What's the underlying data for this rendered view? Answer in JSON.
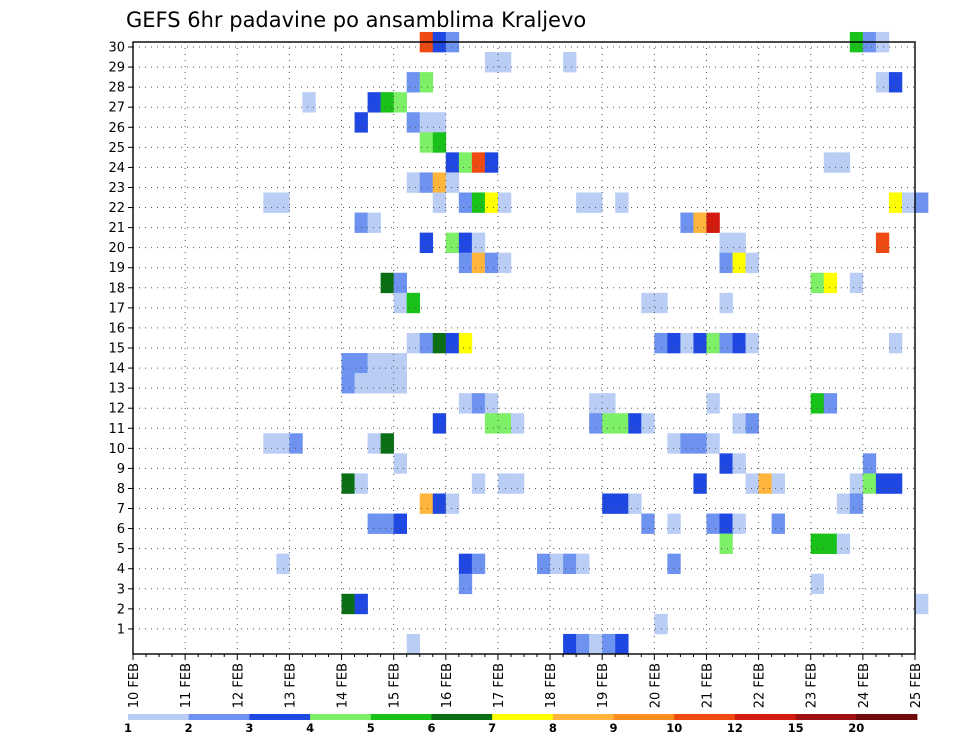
{
  "chart_data": {
    "type": "heatmap",
    "title": "GEFS 6hr padavine po ansamblima Kraljevo",
    "xlabel": "",
    "ylabel": "",
    "x_tick_labels": [
      "10 FEB",
      "11 FEB",
      "12 FEB",
      "13 FEB",
      "14 FEB",
      "15 FEB",
      "16 FEB",
      "17 FEB",
      "18 FEB",
      "19 FEB",
      "20 FEB",
      "21 FEB",
      "22 FEB",
      "23 FEB",
      "24 FEB",
      "25 FEB"
    ],
    "y_tick_labels": [
      "1",
      "2",
      "3",
      "4",
      "5",
      "6",
      "7",
      "8",
      "9",
      "10",
      "11",
      "12",
      "13",
      "14",
      "15",
      "16",
      "17",
      "18",
      "19",
      "20",
      "21",
      "22",
      "23",
      "24",
      "25",
      "26",
      "27",
      "28",
      "29",
      "30"
    ],
    "x_step_hours": 6,
    "y_range": [
      0,
      30
    ],
    "grid": true,
    "colorbar": {
      "labels": [
        "1",
        "2",
        "3",
        "4",
        "5",
        "6",
        "7",
        "8",
        "9",
        "10",
        "12",
        "15",
        "20"
      ],
      "colors": [
        "#b9cdf5",
        "#6e92ef",
        "#1f48e2",
        "#7ef068",
        "#18c218",
        "#0a6e14",
        "#ffff00",
        "#ffb43c",
        "#ff8c1e",
        "#ee4a12",
        "#d21a0f",
        "#a01010",
        "#6e0a0a"
      ]
    },
    "cells": [
      {
        "m": 30,
        "s": [
          [
            22,
            9
          ],
          [
            23,
            2
          ],
          [
            24,
            1
          ],
          [
            55,
            4
          ],
          [
            56,
            1
          ],
          [
            57,
            0
          ]
        ]
      },
      {
        "m": 29,
        "s": [
          [
            27,
            0
          ],
          [
            28,
            0
          ],
          [
            33,
            0
          ]
        ]
      },
      {
        "m": 28,
        "s": [
          [
            21,
            1
          ],
          [
            22,
            3
          ],
          [
            57,
            0
          ],
          [
            58,
            2
          ]
        ]
      },
      {
        "m": 27,
        "s": [
          [
            13,
            0
          ],
          [
            18,
            2
          ],
          [
            19,
            4
          ],
          [
            20,
            3
          ]
        ]
      },
      {
        "m": 26,
        "s": [
          [
            17,
            2
          ],
          [
            21,
            1
          ],
          [
            22,
            0
          ],
          [
            23,
            0
          ]
        ]
      },
      {
        "m": 25,
        "s": [
          [
            22,
            3
          ],
          [
            23,
            4
          ]
        ]
      },
      {
        "m": 24,
        "s": [
          [
            24,
            2
          ],
          [
            25,
            3
          ],
          [
            26,
            9
          ],
          [
            27,
            2
          ],
          [
            53,
            0
          ],
          [
            54,
            0
          ]
        ]
      },
      {
        "m": 23,
        "s": [
          [
            21,
            0
          ],
          [
            22,
            1
          ],
          [
            23,
            7
          ],
          [
            24,
            0
          ]
        ]
      },
      {
        "m": 22,
        "s": [
          [
            10,
            0
          ],
          [
            11,
            0
          ],
          [
            23,
            0
          ],
          [
            25,
            1
          ],
          [
            26,
            4
          ],
          [
            27,
            6
          ],
          [
            28,
            0
          ],
          [
            34,
            0
          ],
          [
            35,
            0
          ],
          [
            37,
            0
          ],
          [
            58,
            6
          ],
          [
            59,
            0
          ],
          [
            60,
            1
          ]
        ]
      },
      {
        "m": 21,
        "s": [
          [
            17,
            1
          ],
          [
            18,
            0
          ],
          [
            42,
            1
          ],
          [
            43,
            7
          ],
          [
            44,
            10
          ]
        ]
      },
      {
        "m": 20,
        "s": [
          [
            22,
            2
          ],
          [
            24,
            3
          ],
          [
            25,
            2
          ],
          [
            26,
            0
          ],
          [
            45,
            0
          ],
          [
            46,
            0
          ],
          [
            57,
            9
          ]
        ]
      },
      {
        "m": 19,
        "s": [
          [
            25,
            1
          ],
          [
            26,
            7
          ],
          [
            27,
            1
          ],
          [
            28,
            0
          ],
          [
            45,
            1
          ],
          [
            46,
            6
          ],
          [
            47,
            0
          ]
        ]
      },
      {
        "m": 18,
        "s": [
          [
            19,
            5
          ],
          [
            20,
            1
          ],
          [
            52,
            3
          ],
          [
            53,
            6
          ],
          [
            55,
            0
          ]
        ]
      },
      {
        "m": 17,
        "s": [
          [
            20,
            0
          ],
          [
            21,
            4
          ],
          [
            39,
            0
          ],
          [
            40,
            0
          ],
          [
            45,
            0
          ]
        ]
      },
      {
        "m": 15,
        "s": [
          [
            21,
            0
          ],
          [
            22,
            1
          ],
          [
            23,
            5
          ],
          [
            24,
            2
          ],
          [
            25,
            6
          ],
          [
            40,
            1
          ],
          [
            41,
            2
          ],
          [
            42,
            0
          ],
          [
            43,
            2
          ],
          [
            44,
            3
          ],
          [
            45,
            1
          ],
          [
            46,
            2
          ],
          [
            47,
            0
          ],
          [
            58,
            0
          ]
        ]
      },
      {
        "m": 14,
        "s": [
          [
            16,
            1
          ],
          [
            17,
            1
          ],
          [
            18,
            0
          ],
          [
            19,
            0
          ],
          [
            20,
            0
          ]
        ]
      },
      {
        "m": 13,
        "s": [
          [
            16,
            1
          ],
          [
            17,
            0
          ],
          [
            18,
            0
          ],
          [
            19,
            0
          ],
          [
            20,
            0
          ]
        ]
      },
      {
        "m": 12,
        "s": [
          [
            25,
            0
          ],
          [
            26,
            1
          ],
          [
            27,
            0
          ],
          [
            35,
            0
          ],
          [
            36,
            0
          ],
          [
            44,
            0
          ],
          [
            52,
            4
          ],
          [
            53,
            1
          ]
        ]
      },
      {
        "m": 11,
        "s": [
          [
            23,
            2
          ],
          [
            27,
            3
          ],
          [
            28,
            3
          ],
          [
            29,
            0
          ],
          [
            35,
            1
          ],
          [
            36,
            3
          ],
          [
            37,
            3
          ],
          [
            38,
            2
          ],
          [
            39,
            0
          ],
          [
            46,
            0
          ],
          [
            47,
            1
          ]
        ]
      },
      {
        "m": 10,
        "s": [
          [
            10,
            0
          ],
          [
            11,
            0
          ],
          [
            12,
            1
          ],
          [
            18,
            0
          ],
          [
            19,
            5
          ],
          [
            41,
            0
          ],
          [
            42,
            1
          ],
          [
            43,
            1
          ],
          [
            44,
            0
          ]
        ]
      },
      {
        "m": 9,
        "s": [
          [
            20,
            0
          ],
          [
            45,
            2
          ],
          [
            46,
            0
          ],
          [
            56,
            1
          ]
        ]
      },
      {
        "m": 8,
        "s": [
          [
            16,
            5
          ],
          [
            17,
            0
          ],
          [
            26,
            0
          ],
          [
            28,
            0
          ],
          [
            29,
            0
          ],
          [
            43,
            2
          ],
          [
            47,
            0
          ],
          [
            48,
            7
          ],
          [
            49,
            0
          ],
          [
            55,
            0
          ],
          [
            56,
            3
          ],
          [
            57,
            2
          ],
          [
            58,
            2
          ]
        ]
      },
      {
        "m": 7,
        "s": [
          [
            22,
            7
          ],
          [
            23,
            2
          ],
          [
            24,
            0
          ],
          [
            36,
            2
          ],
          [
            37,
            2
          ],
          [
            38,
            0
          ],
          [
            54,
            0
          ],
          [
            55,
            1
          ]
        ]
      },
      {
        "m": 6,
        "s": [
          [
            18,
            1
          ],
          [
            19,
            1
          ],
          [
            20,
            2
          ],
          [
            39,
            1
          ],
          [
            41,
            0
          ],
          [
            44,
            1
          ],
          [
            45,
            2
          ],
          [
            46,
            0
          ],
          [
            49,
            1
          ]
        ]
      },
      {
        "m": 5,
        "s": [
          [
            45,
            3
          ],
          [
            52,
            4
          ],
          [
            53,
            4
          ],
          [
            54,
            0
          ]
        ]
      },
      {
        "m": 4,
        "s": [
          [
            11,
            0
          ],
          [
            25,
            2
          ],
          [
            26,
            1
          ],
          [
            31,
            1
          ],
          [
            32,
            0
          ],
          [
            33,
            1
          ],
          [
            34,
            0
          ],
          [
            41,
            1
          ]
        ]
      },
      {
        "m": 3,
        "s": [
          [
            25,
            1
          ],
          [
            52,
            0
          ]
        ]
      },
      {
        "m": 2,
        "s": [
          [
            16,
            5
          ],
          [
            17,
            2
          ],
          [
            60,
            0
          ]
        ]
      },
      {
        "m": 1,
        "s": [
          [
            40,
            0
          ]
        ]
      },
      {
        "m": 0,
        "s": [
          [
            21,
            0
          ],
          [
            33,
            2
          ],
          [
            34,
            1
          ],
          [
            35,
            0
          ],
          [
            36,
            1
          ],
          [
            37,
            2
          ]
        ]
      }
    ]
  }
}
